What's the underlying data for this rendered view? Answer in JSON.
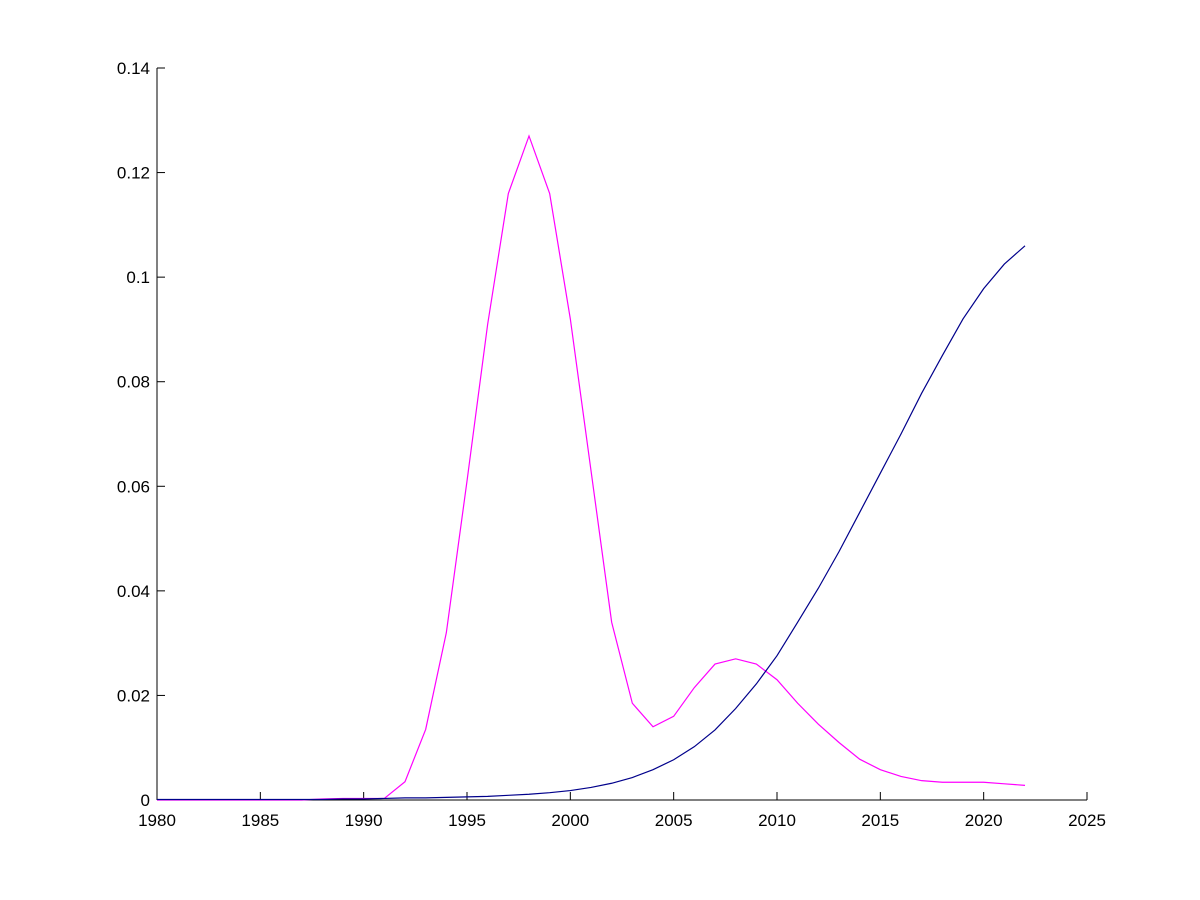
{
  "chart_data": {
    "type": "line",
    "x": [
      1980,
      1981,
      1982,
      1983,
      1984,
      1985,
      1986,
      1987,
      1988,
      1989,
      1990,
      1991,
      1992,
      1993,
      1994,
      1995,
      1996,
      1997,
      1998,
      1999,
      2000,
      2001,
      2002,
      2003,
      2004,
      2005,
      2006,
      2007,
      2008,
      2009,
      2010,
      2011,
      2012,
      2013,
      2014,
      2015,
      2016,
      2017,
      2018,
      2019,
      2020,
      2021,
      2022
    ],
    "series": [
      {
        "color": "#ff00ff",
        "values": [
          0,
          0,
          0,
          0,
          0,
          0,
          0,
          0,
          0.0002,
          0.0003,
          0.0003,
          0.0003,
          0.0035,
          0.0135,
          0.032,
          0.061,
          0.091,
          0.116,
          0.127,
          0.116,
          0.092,
          0.063,
          0.034,
          0.0185,
          0.014,
          0.016,
          0.0215,
          0.026,
          0.027,
          0.026,
          0.023,
          0.0185,
          0.0145,
          0.011,
          0.0078,
          0.0058,
          0.0045,
          0.0037,
          0.0034,
          0.0034,
          0.0034,
          0.0031,
          0.0028
        ]
      },
      {
        "color": "#00008b",
        "values": [
          0.0001,
          0.0001,
          0.0001,
          0.0001,
          0.0001,
          0.0001,
          0.0001,
          0.0001,
          0.0001,
          0.0002,
          0.0002,
          0.0003,
          0.0004,
          0.0004,
          0.0005,
          0.0006,
          0.0007,
          0.0009,
          0.0011,
          0.0014,
          0.0018,
          0.0024,
          0.0032,
          0.0043,
          0.0058,
          0.0077,
          0.0102,
          0.0134,
          0.0175,
          0.0222,
          0.0276,
          0.034,
          0.0405,
          0.0475,
          0.055,
          0.0625,
          0.07,
          0.0778,
          0.085,
          0.092,
          0.0978,
          0.1025,
          0.106
        ]
      }
    ],
    "xlim": [
      1980,
      2025
    ],
    "xticks": [
      1980,
      1985,
      1990,
      1995,
      2000,
      2005,
      2010,
      2015,
      2020,
      2025
    ],
    "ylim": [
      0,
      0.14
    ],
    "yticks": [
      0,
      0.02,
      0.04,
      0.06,
      0.08,
      0.1,
      0.12,
      0.14
    ]
  }
}
